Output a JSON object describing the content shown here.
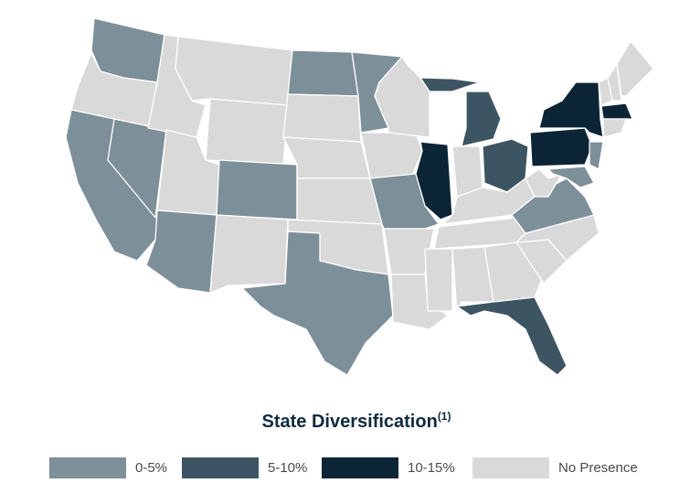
{
  "title": "State Diversification",
  "title_note": "(1)",
  "legend": [
    {
      "label": "0-5%",
      "color": "#7d8f98"
    },
    {
      "label": "5-10%",
      "color": "#3d5562"
    },
    {
      "label": "10-15%",
      "color": "#0c2536"
    },
    {
      "label": "No Presence",
      "color": "#d9d9d9"
    }
  ]
}
